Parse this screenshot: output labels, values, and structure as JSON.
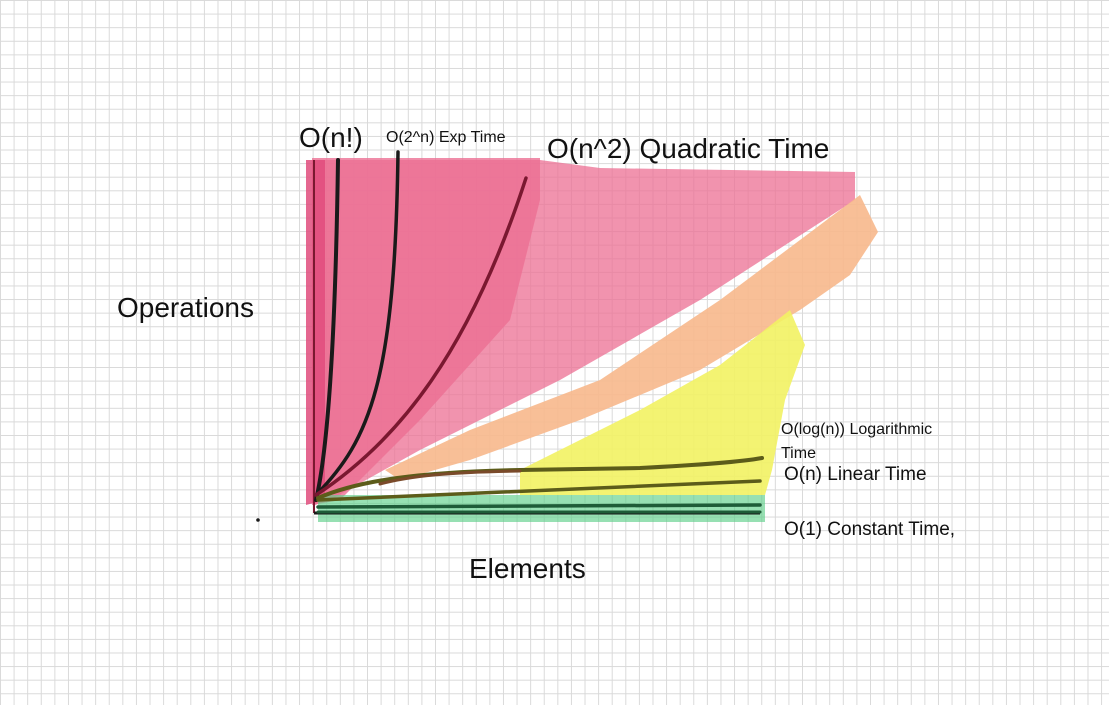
{
  "labels": {
    "factorial": "O(n!)",
    "exponential": "O(2^n) Exp Time",
    "quadratic": "O(n^2) Quadratic Time",
    "y_axis": "Operations",
    "x_axis": "Elements",
    "logarithmic": "O(log(n))  Logarithmic Time",
    "linear": "O(n) Linear Time",
    "constant": "O(1) Constant Time,"
  },
  "colors": {
    "pink": "#ec6f93",
    "orange": "#f7b88c",
    "yellow": "#f2f263",
    "green": "#5fd08a",
    "ink": "#1a1a1a",
    "maroon": "#7a1830",
    "olive": "#5c5c1a",
    "brown": "#7a4a2a",
    "dark_green": "#1e5c38"
  }
}
